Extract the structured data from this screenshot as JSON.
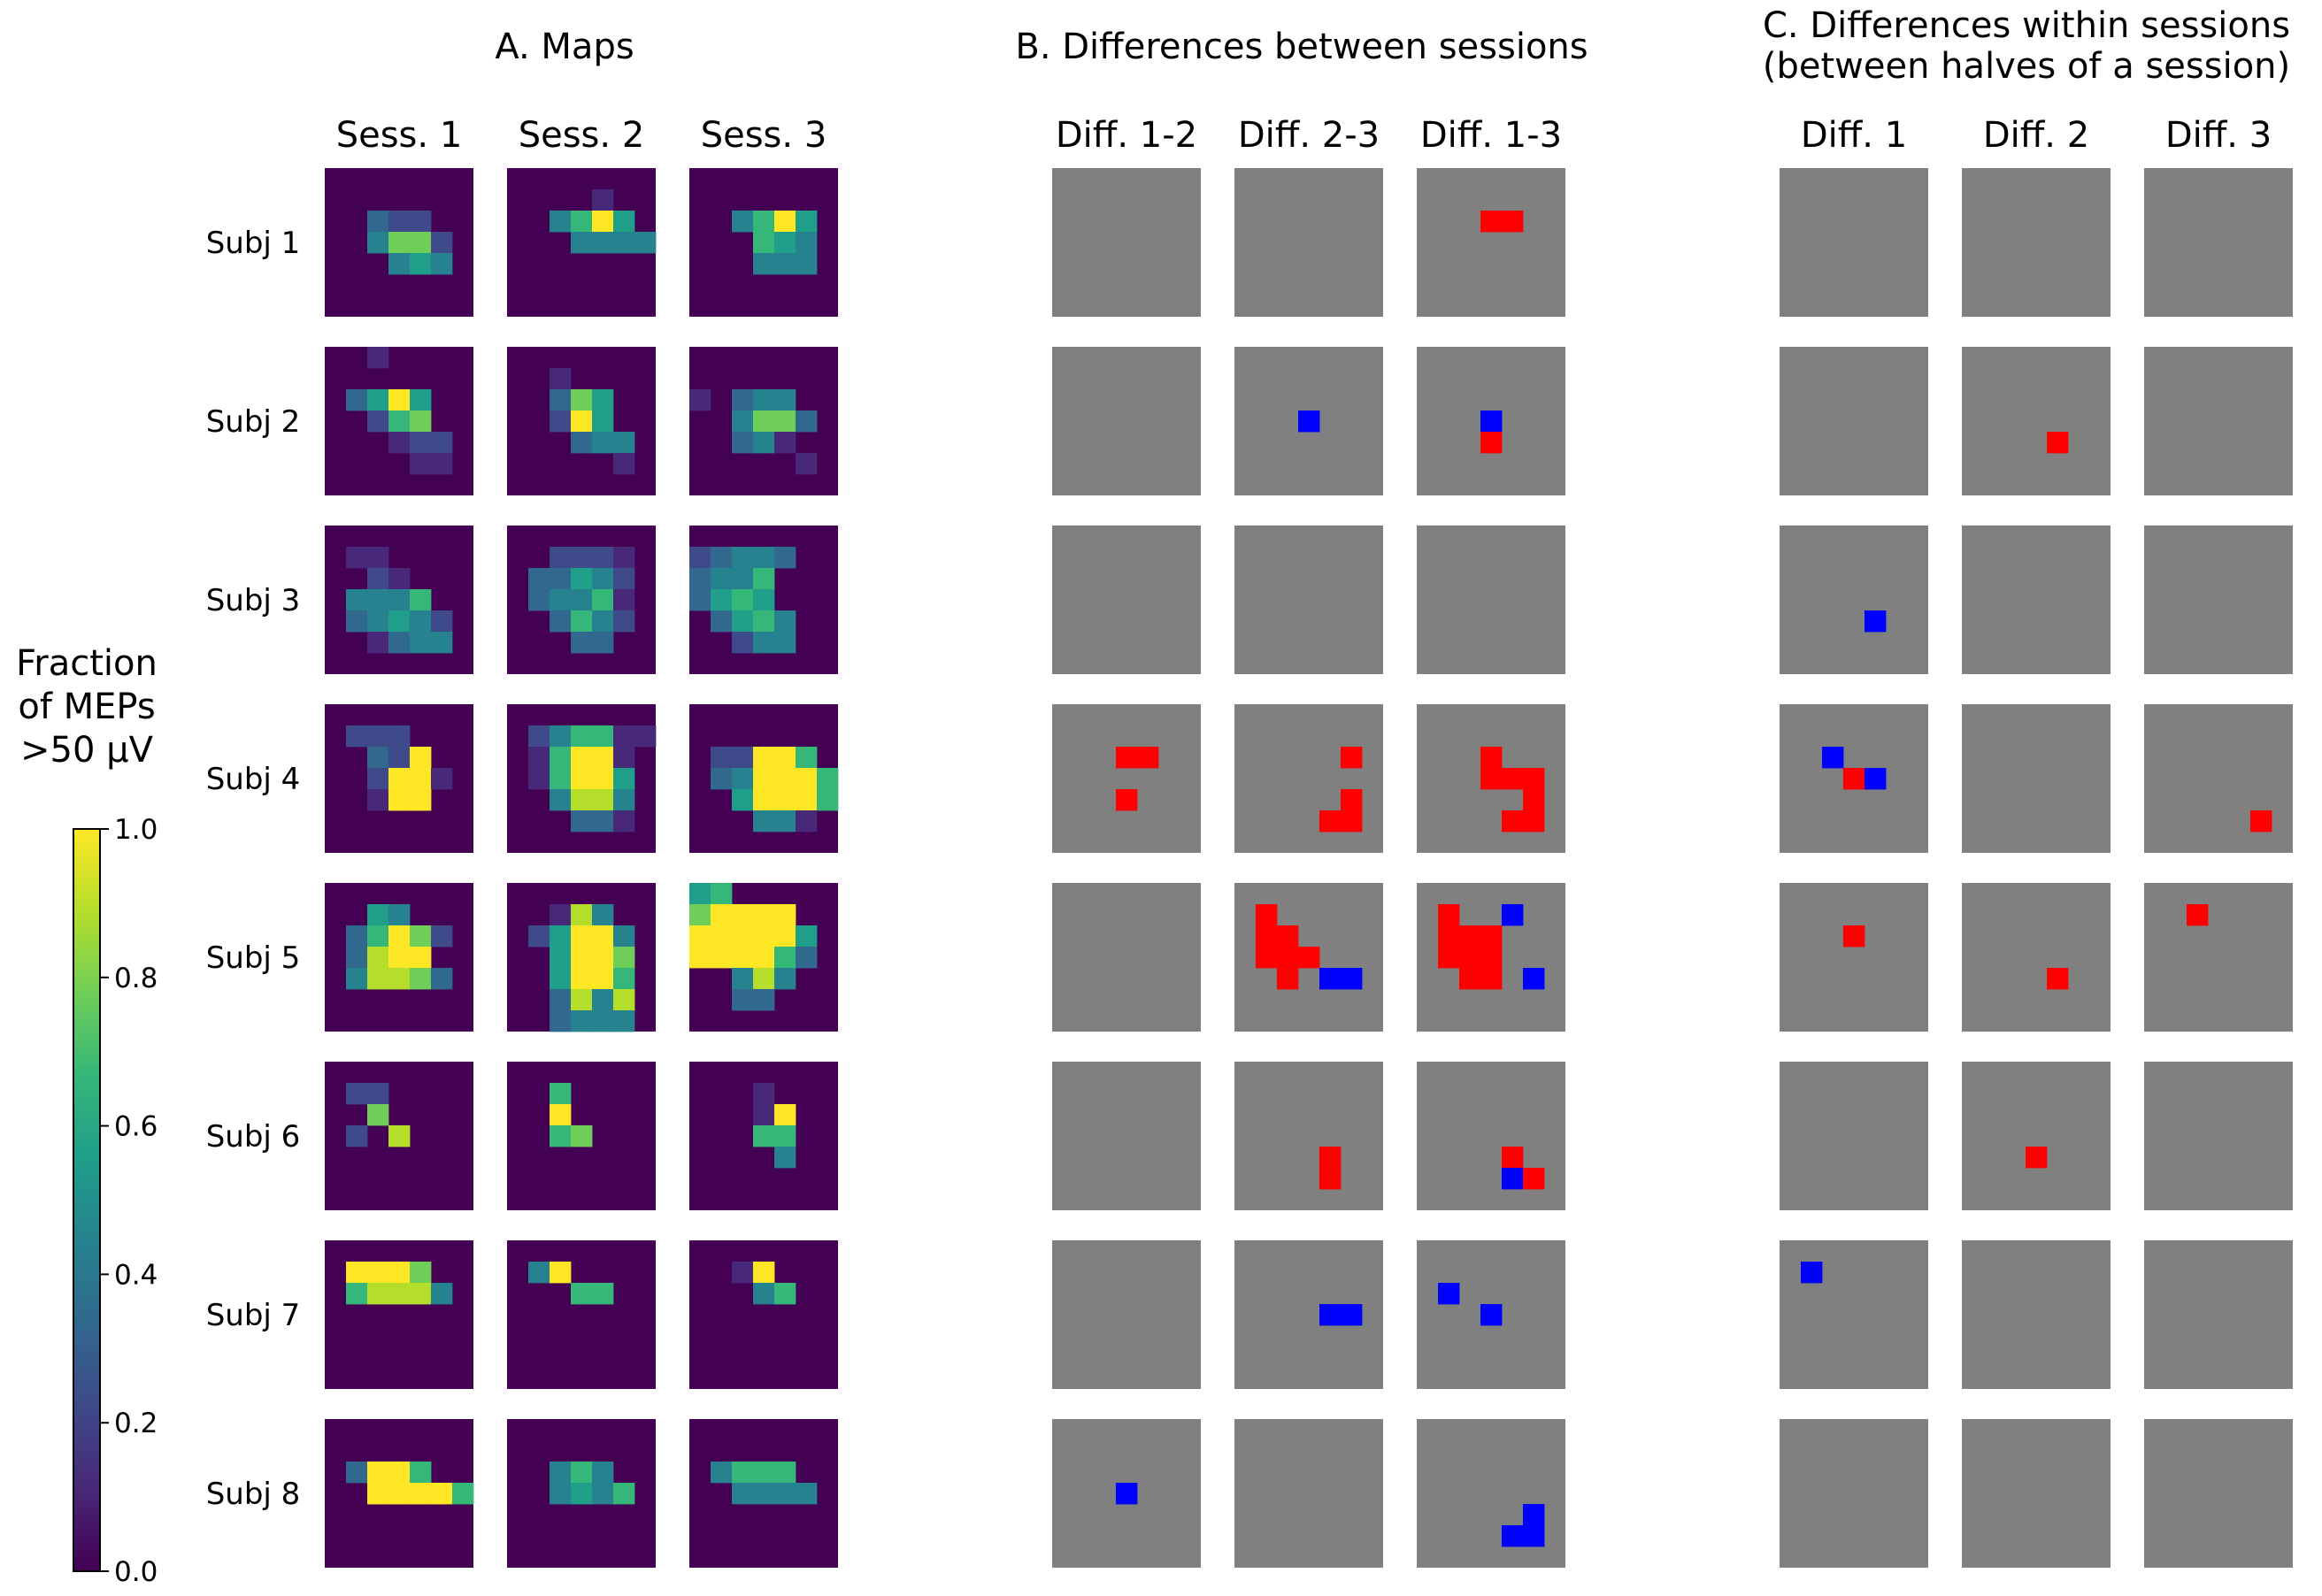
{
  "chart_data": {
    "type": "heatmap",
    "grid_size": 7,
    "colormap": "viridis",
    "sections": [
      {
        "id": "maps",
        "title": "A. Maps",
        "columns": [
          "Sess. 1",
          "Sess. 2",
          "Sess. 3"
        ],
        "kind": "continuous"
      },
      {
        "id": "between",
        "title": "B. Differences between sessions",
        "columns": [
          "Diff. 1-2",
          "Diff. 2-3",
          "Diff. 1-3"
        ],
        "kind": "categorical"
      },
      {
        "id": "within",
        "title_lines": [
          "C. Differences within sessions",
          "(between halves of a session)"
        ],
        "columns": [
          "Diff. 1",
          "Diff. 2",
          "Diff. 3"
        ],
        "kind": "categorical"
      }
    ],
    "rows": [
      "Subj 1",
      "Subj 2",
      "Subj 3",
      "Subj 4",
      "Subj 5",
      "Subj 6",
      "Subj 7",
      "Subj 8"
    ],
    "colorbar": {
      "label_lines": [
        "Fraction",
        "of MEPs",
        ">50 µV"
      ],
      "min": 0.0,
      "max": 1.0,
      "ticks": [
        "0.0",
        "0.2",
        "0.4",
        "0.6",
        "0.8",
        "1.0"
      ]
    },
    "diff_colors": {
      "none": "#808080",
      "increase": "#ff0000",
      "decrease": "#0000ff"
    },
    "maps": [
      [
        [
          "0000000",
          "0000000",
          "0032200",
          "0047720",
          "0004540",
          "0000000",
          "0000000"
        ],
        [
          "0000000",
          "0000100",
          "0046950",
          "0004444",
          "0000000",
          "0000000",
          "0000000"
        ],
        [
          "0000000",
          "0000000",
          "0046950",
          "0006540",
          "0004440",
          "0000000",
          "0000000"
        ]
      ],
      [
        [
          "0010000",
          "0000000",
          "0359500",
          "0026700",
          "0001220",
          "0000110",
          "0000000"
        ],
        [
          "0000000",
          "0010000",
          "0037500",
          "0029500",
          "0003440",
          "0000010",
          "0000000"
        ],
        [
          "0000000",
          "0000000",
          "1034400",
          "0047730",
          "0034100",
          "0000010",
          "0000000"
        ]
      ],
      [
        [
          "0000000",
          "0110000",
          "0021000",
          "0444600",
          "0345420",
          "0013440",
          "0000000"
        ],
        [
          "0000000",
          "0022210",
          "0335420",
          "0344610",
          "0036420",
          "0003300",
          "0000000"
        ],
        [
          "0000000",
          "2344300",
          "3446000",
          "3565000",
          "0356400",
          "0024400",
          "0000000"
        ]
      ],
      [
        [
          "0000000",
          "0222000",
          "0032900",
          "0029910",
          "0019900",
          "0000000",
          "0000000"
        ],
        [
          "0000000",
          "0246611",
          "0169910",
          "0169950",
          "0048840",
          "0003310",
          "0000000"
        ],
        [
          "0000000",
          "0000000",
          "0229960",
          "0349996",
          "0059996",
          "0004410",
          "0000000"
        ]
      ],
      [
        [
          "0000000",
          "0054000",
          "0369720",
          "0389900",
          "0488730",
          "0000000",
          "0000000"
        ],
        [
          "0000000",
          "0018400",
          "0259940",
          "0059970",
          "0059960",
          "0038480",
          "0034440"
        ],
        [
          "5600000",
          "7999900",
          "9999950",
          "9999630",
          "0048400",
          "0033000",
          "0000000"
        ]
      ],
      [
        [
          "0000000",
          "0220000",
          "0070000",
          "0208000",
          "0000000",
          "0000000",
          "0000000"
        ],
        [
          "0000000",
          "0060000",
          "0090000",
          "0067000",
          "0000000",
          "0000000",
          "0000000"
        ],
        [
          "0000000",
          "0001000",
          "0001900",
          "0006600",
          "0000400",
          "0000000",
          "0000000"
        ]
      ],
      [
        [
          "0000000",
          "0999700",
          "0688840",
          "0000000",
          "0000000",
          "0000000",
          "0000000"
        ],
        [
          "0000000",
          "0490000",
          "0006600",
          "0000000",
          "0000000",
          "0000000",
          "0000000"
        ],
        [
          "0000000",
          "0019000",
          "0004600",
          "0000000",
          "0000000",
          "0000000",
          "0000000"
        ]
      ],
      [
        [
          "0000000",
          "0000000",
          "0399600",
          "0099996",
          "0000000",
          "0000000",
          "0000000"
        ],
        [
          "0000000",
          "0000000",
          "0046400",
          "0045460",
          "0000000",
          "0000000",
          "0000000"
        ],
        [
          "0000000",
          "0000000",
          "0466600",
          "0044440",
          "0000000",
          "0000000",
          "0000000"
        ]
      ]
    ],
    "between": [
      [
        [
          "0000000",
          "0000000",
          "0000000",
          "0000000",
          "0000000",
          "0000000",
          "0000000"
        ],
        [
          "0000000",
          "0000000",
          "0000000",
          "0000000",
          "0000000",
          "0000000",
          "0000000"
        ],
        [
          "0000000",
          "0000000",
          "0001100",
          "0000000",
          "0000000",
          "0000000",
          "0000000"
        ]
      ],
      [
        [
          "0000000",
          "0000000",
          "0000000",
          "0000000",
          "0000000",
          "0000000",
          "0000000"
        ],
        [
          "0000000",
          "0000000",
          "0000000",
          "0002000",
          "0000000",
          "0000000",
          "0000000"
        ],
        [
          "0000000",
          "0000000",
          "0000000",
          "0002000",
          "0001000",
          "0000000",
          "0000000"
        ]
      ],
      [
        [
          "0000000",
          "0000000",
          "0000000",
          "0000000",
          "0000000",
          "0000000",
          "0000000"
        ],
        [
          "0000000",
          "0000000",
          "0000000",
          "0000000",
          "0000000",
          "0000000",
          "0000000"
        ],
        [
          "0000000",
          "0000000",
          "0000000",
          "0000000",
          "0000000",
          "0000000",
          "0000000"
        ]
      ],
      [
        [
          "0000000",
          "0000000",
          "0001100",
          "0000000",
          "0001000",
          "0000000",
          "0000000"
        ],
        [
          "0000000",
          "0000000",
          "0000010",
          "0000000",
          "0000010",
          "0000110",
          "0000000"
        ],
        [
          "0000000",
          "0000000",
          "0001000",
          "0001110",
          "0000010",
          "0000110",
          "0000000"
        ]
      ],
      [
        [
          "0000000",
          "0000000",
          "0000000",
          "0000000",
          "0000000",
          "0000000",
          "0000000"
        ],
        [
          "0000000",
          "0100000",
          "0110000",
          "0111000",
          "0010220",
          "0000000",
          "0000000"
        ],
        [
          "0000000",
          "0100200",
          "0111000",
          "0111000",
          "0011020",
          "0000000",
          "0000000"
        ]
      ],
      [
        [
          "0000000",
          "0000000",
          "0000000",
          "0000000",
          "0000000",
          "0000000",
          "0000000"
        ],
        [
          "0000000",
          "0000000",
          "0000000",
          "0000000",
          "0000100",
          "0000100",
          "0000000"
        ],
        [
          "0000000",
          "0000000",
          "0000000",
          "0000000",
          "0000100",
          "0000210",
          "0000000"
        ]
      ],
      [
        [
          "0000000",
          "0000000",
          "0000000",
          "0000000",
          "0000000",
          "0000000",
          "0000000"
        ],
        [
          "0000000",
          "0000000",
          "0000000",
          "0000220",
          "0000000",
          "0000000",
          "0000000"
        ],
        [
          "0000000",
          "0000000",
          "0200000",
          "0002000",
          "0000000",
          "0000000",
          "0000000"
        ]
      ],
      [
        [
          "0000000",
          "0000000",
          "0000000",
          "0002000",
          "0000000",
          "0000000",
          "0000000"
        ],
        [
          "0000000",
          "0000000",
          "0000000",
          "0000000",
          "0000000",
          "0000000",
          "0000000"
        ],
        [
          "0000000",
          "0000000",
          "0000000",
          "0000000",
          "0000020",
          "0000220",
          "0000000"
        ]
      ]
    ],
    "within": [
      [
        [
          "0000000",
          "0000000",
          "0000000",
          "0000000",
          "0000000",
          "0000000",
          "0000000"
        ],
        [
          "0000000",
          "0000000",
          "0000000",
          "0000000",
          "0000000",
          "0000000",
          "0000000"
        ],
        [
          "0000000",
          "0000000",
          "0000000",
          "0000000",
          "0000000",
          "0000000",
          "0000000"
        ]
      ],
      [
        [
          "0000000",
          "0000000",
          "0000000",
          "0000000",
          "0000000",
          "0000000",
          "0000000"
        ],
        [
          "0000000",
          "0000000",
          "0000000",
          "0000000",
          "0000100",
          "0000000",
          "0000000"
        ],
        [
          "0000000",
          "0000000",
          "0000000",
          "0000000",
          "0000000",
          "0000000",
          "0000000"
        ]
      ],
      [
        [
          "0000000",
          "0000000",
          "0000000",
          "0000000",
          "0000200",
          "0000000",
          "0000000"
        ],
        [
          "0000000",
          "0000000",
          "0000000",
          "0000000",
          "0000000",
          "0000000",
          "0000000"
        ],
        [
          "0000000",
          "0000000",
          "0000000",
          "0000000",
          "0000000",
          "0000000",
          "0000000"
        ]
      ],
      [
        [
          "0000000",
          "0000000",
          "0020000",
          "0001200",
          "0000000",
          "0000000",
          "0000000"
        ],
        [
          "0000000",
          "0000000",
          "0000000",
          "0000000",
          "0000000",
          "0000000",
          "0000000"
        ],
        [
          "0000000",
          "0000000",
          "0000000",
          "0000000",
          "0000000",
          "0000010",
          "0000000"
        ]
      ],
      [
        [
          "0000000",
          "0000000",
          "0001000",
          "0000000",
          "0000000",
          "0000000",
          "0000000"
        ],
        [
          "0000000",
          "0000000",
          "0000000",
          "0000000",
          "0000100",
          "0000000",
          "0000000"
        ],
        [
          "0000000",
          "0010000",
          "0000000",
          "0000000",
          "0000000",
          "0000000",
          "0000000"
        ]
      ],
      [
        [
          "0000000",
          "0000000",
          "0000000",
          "0000000",
          "0000000",
          "0000000",
          "0000000"
        ],
        [
          "0000000",
          "0000000",
          "0000000",
          "0000000",
          "0003000",
          "0000000",
          "0000000"
        ],
        [
          "0000000",
          "0000000",
          "0000000",
          "0000000",
          "0000000",
          "0000000",
          "0000000"
        ]
      ],
      [
        [
          "0000000",
          "0200000",
          "0000000",
          "0000000",
          "0000000",
          "0000000",
          "0000000"
        ],
        [
          "0000000",
          "0000000",
          "0000000",
          "0000000",
          "0000000",
          "0000000",
          "0000000"
        ],
        [
          "0000000",
          "0000000",
          "0000000",
          "0000000",
          "0000000",
          "0000000",
          "0000000"
        ]
      ],
      [
        [
          "0000000",
          "0000000",
          "0000000",
          "0000000",
          "0000000",
          "0000000",
          "0000000"
        ],
        [
          "0000000",
          "0000000",
          "0000000",
          "0000000",
          "0000000",
          "0000000",
          "0000000"
        ],
        [
          "0000000",
          "0000000",
          "0000000",
          "0000000",
          "0000000",
          "0000000",
          "0000000"
        ]
      ]
    ]
  }
}
